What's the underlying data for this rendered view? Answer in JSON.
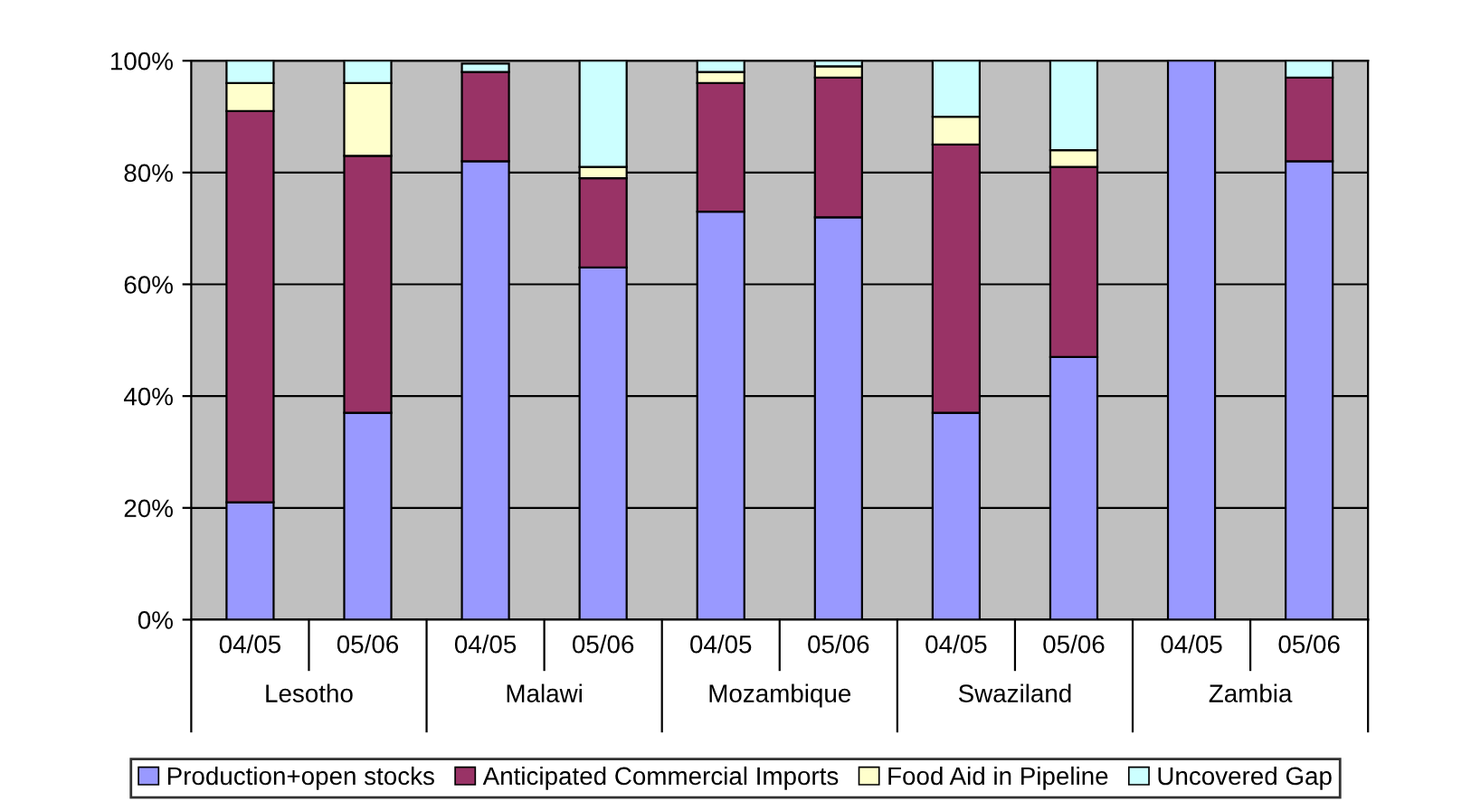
{
  "chart_data": {
    "type": "bar",
    "stacked": true,
    "categories": [
      "04/05",
      "05/06",
      "04/05",
      "05/06",
      "04/05",
      "05/06",
      "04/05",
      "05/06",
      "04/05",
      "05/06"
    ],
    "annotations": [
      "Lesotho",
      "Malawi",
      "Mozambique",
      "Swaziland",
      "Zambia"
    ],
    "series": [
      {
        "name": "Production+open stocks",
        "color": "#9999ff",
        "values": [
          21,
          37,
          82,
          63,
          73,
          72,
          37,
          47,
          100,
          82
        ]
      },
      {
        "name": "Anticipated Commercial Imports",
        "color": "#993366",
        "values": [
          70,
          46,
          16,
          16,
          23,
          25,
          48,
          34,
          0,
          15
        ]
      },
      {
        "name": "Food Aid in Pipeline",
        "color": "#ffffcc",
        "values": [
          5,
          13,
          null,
          2,
          2,
          2,
          5,
          3,
          0,
          0
        ]
      },
      {
        "name": "Uncovered Gap",
        "color": "#ccffff",
        "values": [
          4,
          4,
          1.5,
          19,
          2,
          1,
          10,
          16,
          0,
          3
        ]
      }
    ],
    "ylim": [
      0,
      100
    ],
    "yticks": [
      {
        "value": 0,
        "label": "0%"
      },
      {
        "value": 20,
        "label": "20%"
      },
      {
        "value": 40,
        "label": "40%"
      },
      {
        "value": 60,
        "label": "60%"
      },
      {
        "value": 80,
        "label": "80%"
      },
      {
        "value": 100,
        "label": "100%"
      }
    ],
    "grid": "y",
    "legend": "bottom"
  }
}
